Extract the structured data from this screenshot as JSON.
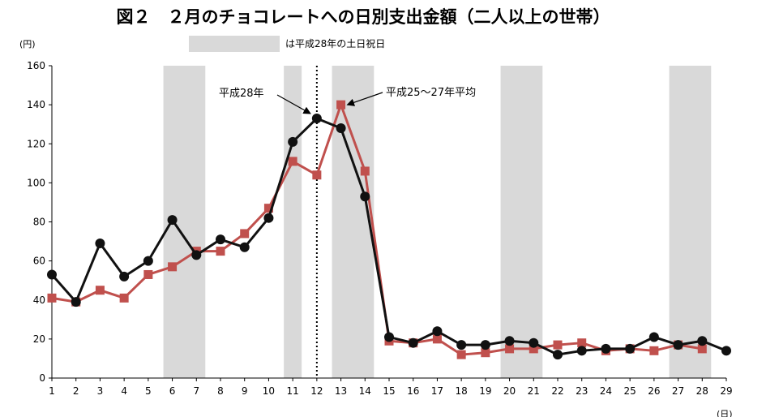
{
  "chart_data": {
    "type": "line",
    "title": "図２　２月のチョコレートへの日別支出金額（二人以上の世帯）",
    "y_unit": "(円)",
    "x_unit": "(日)",
    "legend": {
      "label": "は平成28年の土日祝日",
      "color": "#d9d9d9"
    },
    "x": [
      1,
      2,
      3,
      4,
      5,
      6,
      7,
      8,
      9,
      10,
      11,
      12,
      13,
      14,
      15,
      16,
      17,
      18,
      19,
      20,
      21,
      22,
      23,
      24,
      25,
      26,
      27,
      28,
      29
    ],
    "ylim": [
      0,
      160
    ],
    "yticks": [
      0,
      20,
      40,
      60,
      80,
      100,
      120,
      140,
      160
    ],
    "weekend_ranges": [
      [
        6,
        7
      ],
      [
        11,
        11
      ],
      [
        13,
        14
      ],
      [
        20,
        21
      ],
      [
        27,
        28
      ]
    ],
    "marker_line_x": 12,
    "series": [
      {
        "name": "平成28年",
        "color": "#111111",
        "marker": "circle",
        "values": [
          53,
          39,
          69,
          52,
          60,
          81,
          63,
          71,
          67,
          82,
          121,
          133,
          128,
          93,
          21,
          18,
          24,
          17,
          17,
          19,
          18,
          12,
          14,
          15,
          15,
          21,
          17,
          19,
          14
        ]
      },
      {
        "name": "平成25～27年平均",
        "color": "#c0504d",
        "marker": "square",
        "values": [
          41,
          39,
          45,
          41,
          53,
          57,
          65,
          65,
          74,
          87,
          111,
          104,
          140,
          106,
          19,
          18,
          20,
          12,
          13,
          15,
          15,
          17,
          18,
          14,
          15,
          14,
          17,
          15,
          null
        ]
      }
    ],
    "annotations": [
      {
        "text": "平成28年"
      },
      {
        "text": "平成25～27年平均"
      }
    ]
  }
}
